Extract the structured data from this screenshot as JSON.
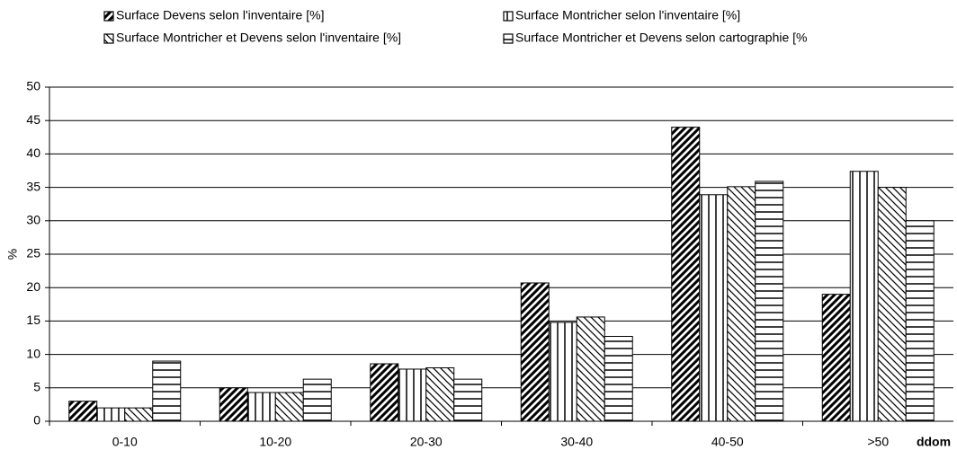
{
  "chart_data": {
    "type": "bar",
    "categories": [
      "0-10",
      "10-20",
      "20-30",
      "30-40",
      "40-50",
      ">50"
    ],
    "series": [
      {
        "name": "Surface Devens selon l'inventaire [%]",
        "color": "#000000",
        "pattern": "diagonal",
        "values": [
          3,
          5,
          8.6,
          20.7,
          44,
          19
        ]
      },
      {
        "name": "Surface Montricher selon l'inventaire [%]",
        "color": "#000000",
        "pattern": "vertical",
        "values": [
          2,
          4.3,
          7.8,
          14.8,
          33.9,
          37.4
        ]
      },
      {
        "name": "Surface Montricher et Devens selon l'inventaire [%]",
        "color": "#000000",
        "pattern": "backslash",
        "values": [
          2,
          4.3,
          8,
          15.6,
          35.1,
          35
        ]
      },
      {
        "name": "Surface Montricher et Devens selon cartographie [%",
        "color": "#000000",
        "pattern": "horizontal",
        "values": [
          9,
          6.3,
          6.3,
          12.7,
          35.9,
          30
        ]
      }
    ],
    "y_label": "%",
    "x_label": "ddom",
    "ylim": [
      0,
      50
    ],
    "yticks": [
      0,
      5,
      10,
      15,
      20,
      25,
      30,
      35,
      40,
      45,
      50
    ],
    "grid": true
  }
}
